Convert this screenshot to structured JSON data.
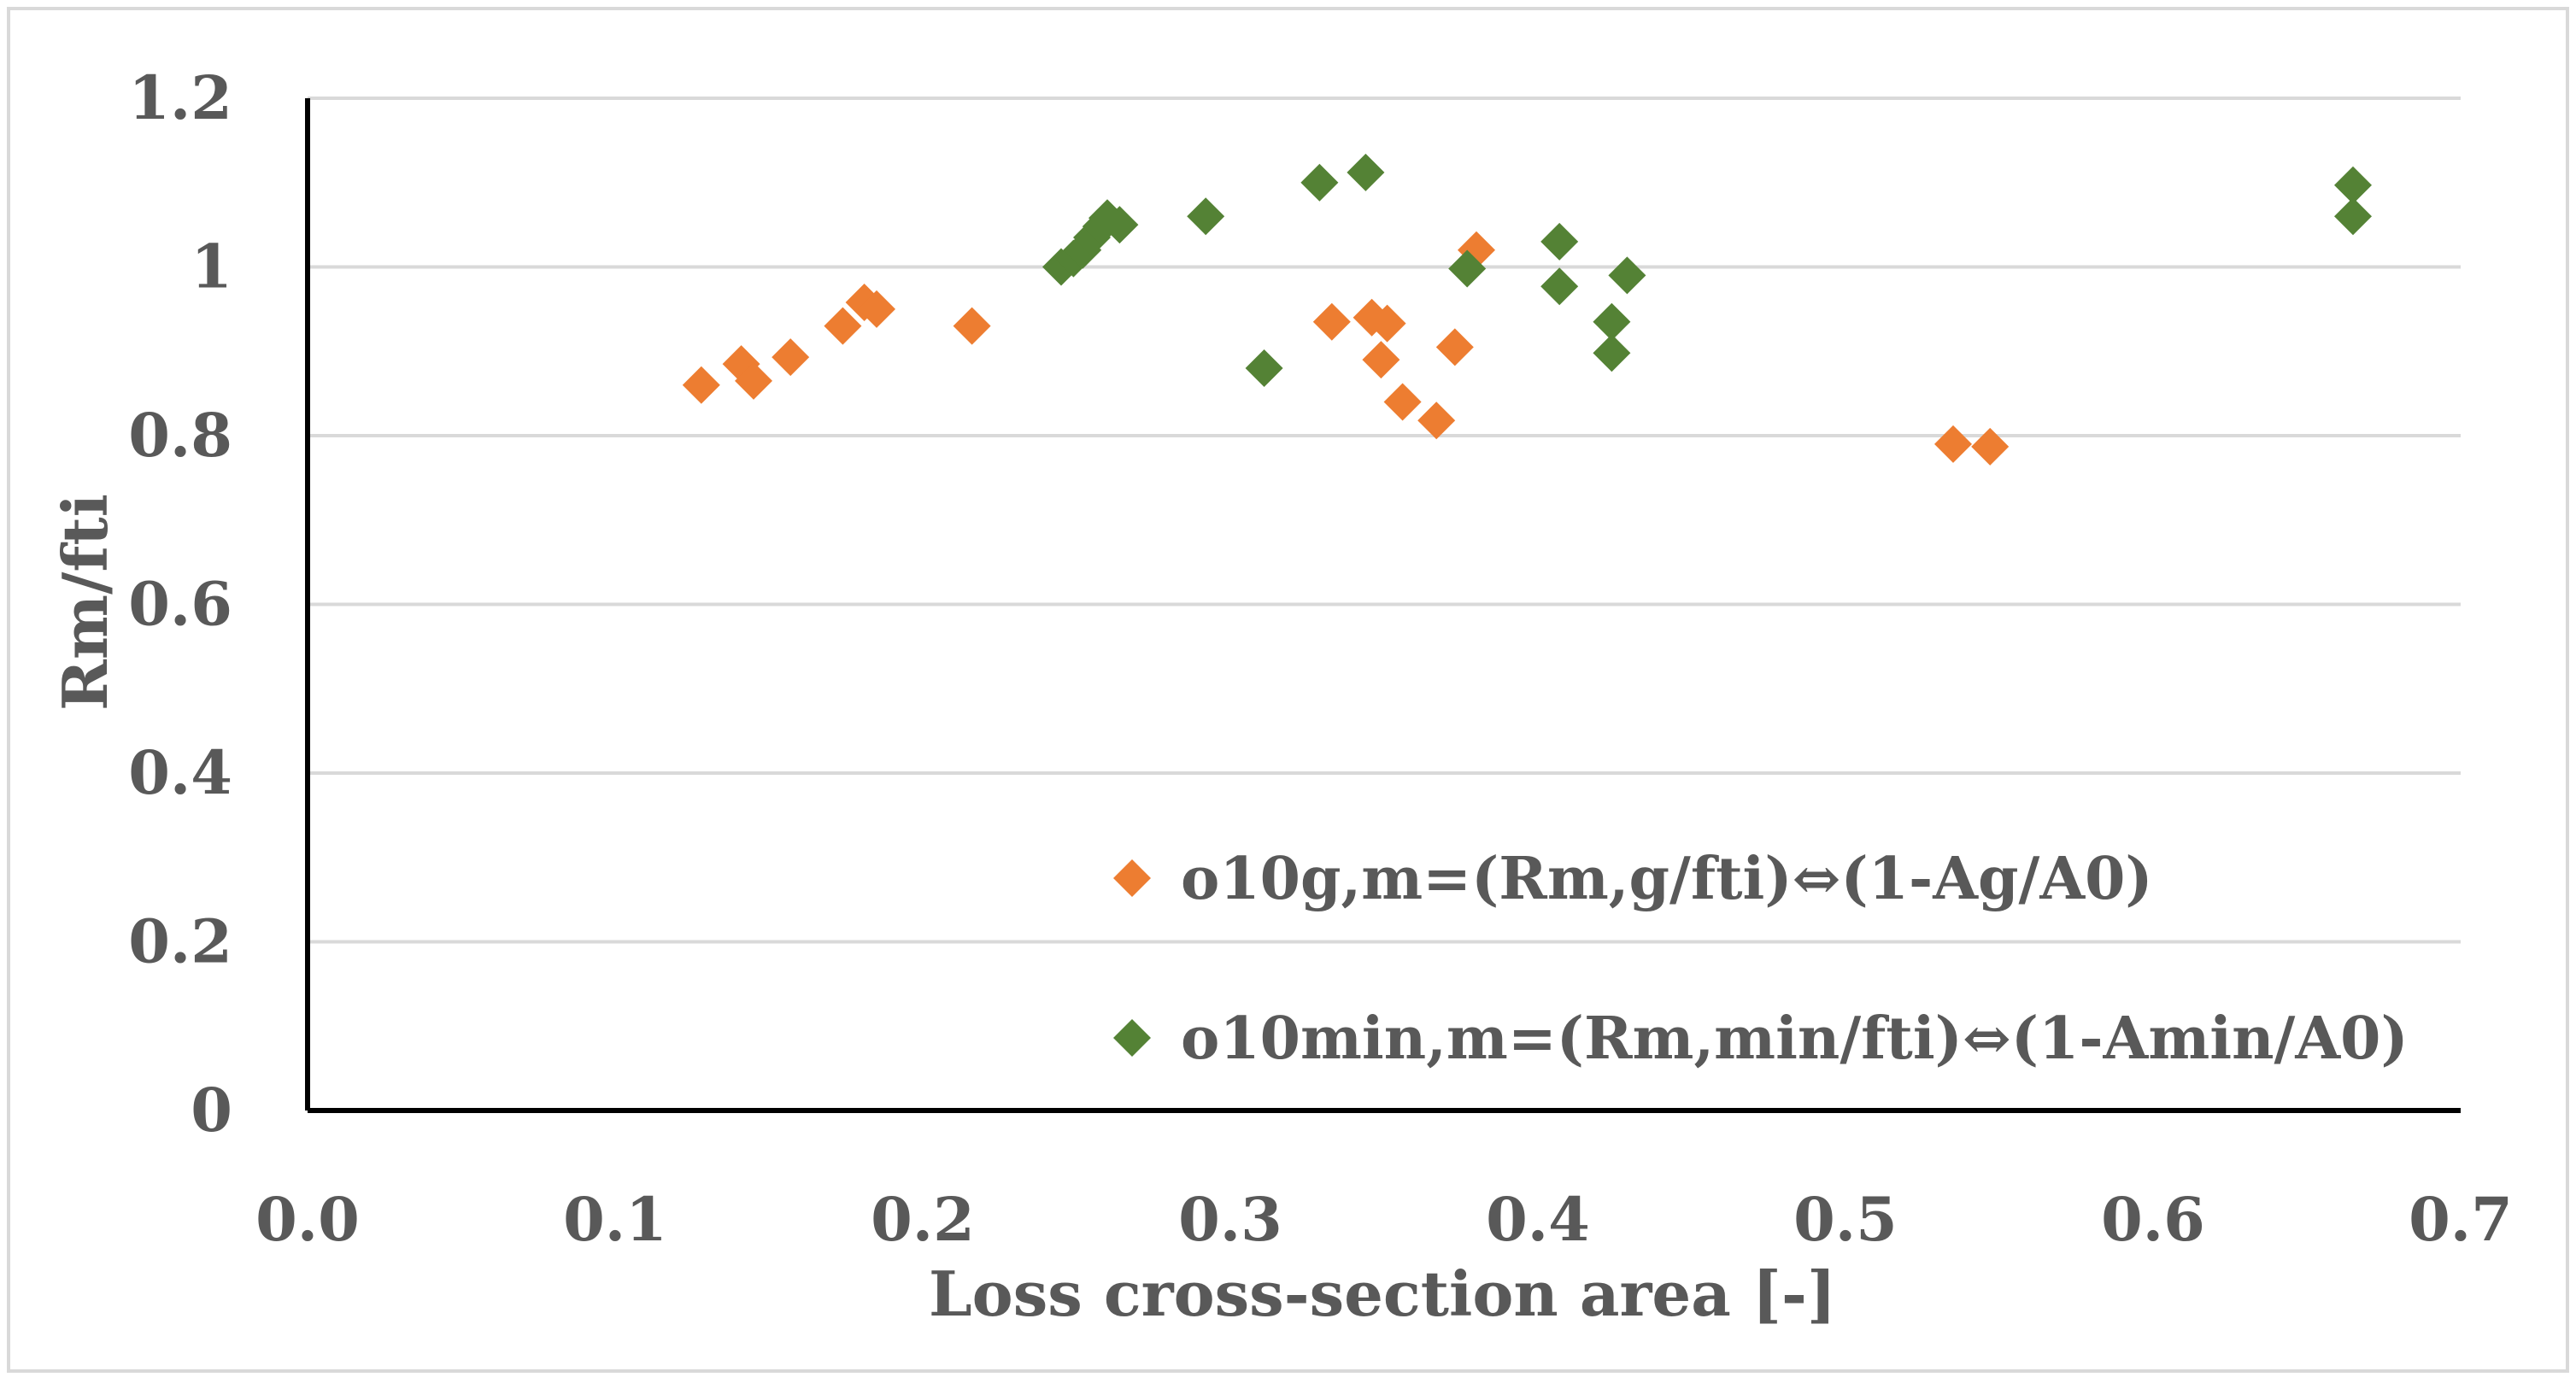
{
  "chart_data": {
    "type": "scatter",
    "title": "",
    "xlabel": "Loss cross-section area [-]",
    "ylabel": "Rm/fti",
    "xlim": [
      0.0,
      0.7
    ],
    "ylim": [
      0,
      1.2
    ],
    "x_ticks": [
      0.0,
      0.1,
      0.2,
      0.3,
      0.4,
      0.5,
      0.6,
      0.7
    ],
    "x_tick_labels": [
      "0.0",
      "0.1",
      "0.2",
      "0.3",
      "0.4",
      "0.5",
      "0.6",
      "0.7"
    ],
    "y_ticks": [
      0,
      0.2,
      0.4,
      0.6,
      0.8,
      1,
      1.2
    ],
    "y_tick_labels": [
      "0",
      "0.2",
      "0.4",
      "0.6",
      "0.8",
      "1",
      "1.2"
    ],
    "grid": true,
    "legend_position": "bottom-right",
    "series": [
      {
        "name": "o10g,m=(Rm,g/fti)",
        "legend_arrow": "⇔",
        "legend_suffix": "(1-Ag/A0)",
        "color": "#ED7D31",
        "marker": "diamond",
        "points": [
          [
            0.128,
            0.86
          ],
          [
            0.141,
            0.885
          ],
          [
            0.145,
            0.865
          ],
          [
            0.157,
            0.893
          ],
          [
            0.174,
            0.93
          ],
          [
            0.181,
            0.958
          ],
          [
            0.185,
            0.95
          ],
          [
            0.216,
            0.93
          ],
          [
            0.333,
            0.935
          ],
          [
            0.346,
            0.94
          ],
          [
            0.349,
            0.89
          ],
          [
            0.351,
            0.933
          ],
          [
            0.356,
            0.84
          ],
          [
            0.367,
            0.818
          ],
          [
            0.373,
            0.905
          ],
          [
            0.38,
            1.02
          ],
          [
            0.535,
            0.79
          ],
          [
            0.547,
            0.787
          ]
        ]
      },
      {
        "name": "o10min,m=(Rm,min/fti)",
        "legend_arrow": "⇔",
        "legend_suffix": "(1-Amin/A0)",
        "color": "#548235",
        "marker": "diamond",
        "points": [
          [
            0.245,
            1.0
          ],
          [
            0.249,
            1.01
          ],
          [
            0.252,
            1.02
          ],
          [
            0.255,
            1.035
          ],
          [
            0.258,
            1.048
          ],
          [
            0.26,
            1.058
          ],
          [
            0.264,
            1.05
          ],
          [
            0.292,
            1.06
          ],
          [
            0.311,
            0.88
          ],
          [
            0.329,
            1.1
          ],
          [
            0.344,
            1.112
          ],
          [
            0.377,
            0.998
          ],
          [
            0.407,
            1.03
          ],
          [
            0.407,
            0.977
          ],
          [
            0.424,
            0.935
          ],
          [
            0.424,
            0.898
          ],
          [
            0.429,
            0.99
          ],
          [
            0.665,
            1.097
          ],
          [
            0.665,
            1.06
          ]
        ]
      }
    ]
  }
}
